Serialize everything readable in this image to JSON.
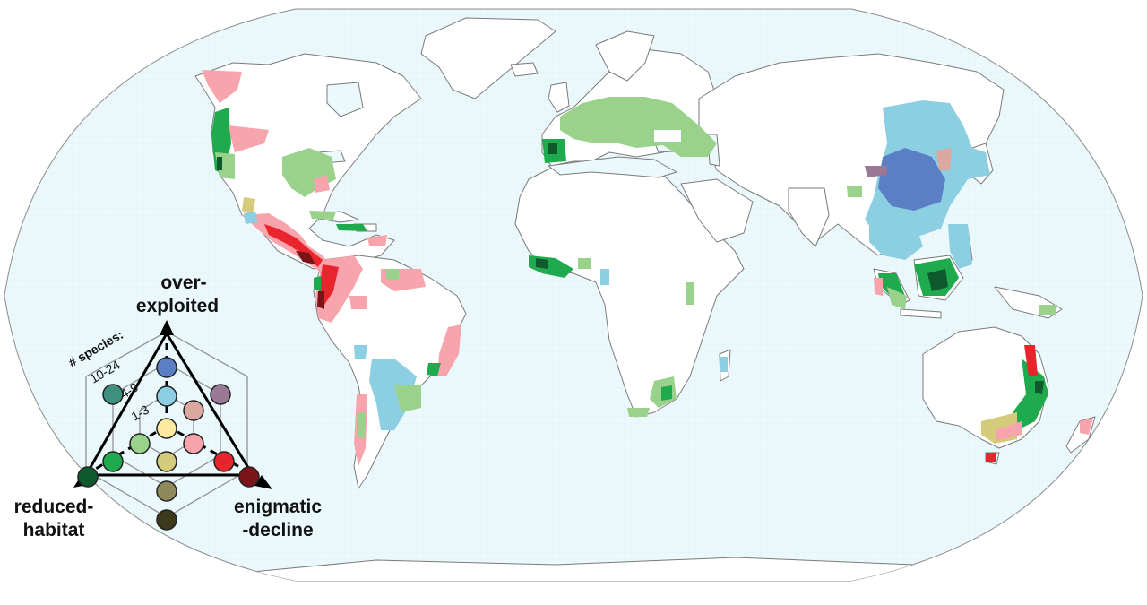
{
  "legend": {
    "axis_labels": {
      "over_exploited": [
        "over-",
        "exploited"
      ],
      "reduced_habitat": [
        "reduced-",
        "habitat"
      ],
      "enigmatic_decline": [
        "enigmatic",
        "-decline"
      ]
    },
    "species_title": "# species:",
    "tiers": [
      "10-24",
      "4-9",
      "1-3"
    ],
    "colors": {
      "over_exploited_1": "#fde9a0",
      "over_exploited_2": "#8ccfe3",
      "over_exploited_3": "#5b7fc4",
      "reduced_habitat_1": "#9ad18b",
      "reduced_habitat_2": "#1faa4d",
      "reduced_habitat_3": "#0e5a2c",
      "enigmatic_1": "#f7a4ac",
      "enigmatic_2": "#e8252c",
      "enigmatic_3": "#7a1418",
      "mixed_oe_rh": "#3f8f7e",
      "mixed_oe_ed": "#9a7896",
      "mixed_oe_ed_low": "#dba89f",
      "mixed_rh_ed": "#d4cc7a",
      "mixed_rh_ed_mid": "#8e8a5c",
      "mixed_rh_ed_high": "#3c3a1a",
      "ocean": "#e9f8fb",
      "land": "#ffffff",
      "borders": "#777777"
    }
  }
}
